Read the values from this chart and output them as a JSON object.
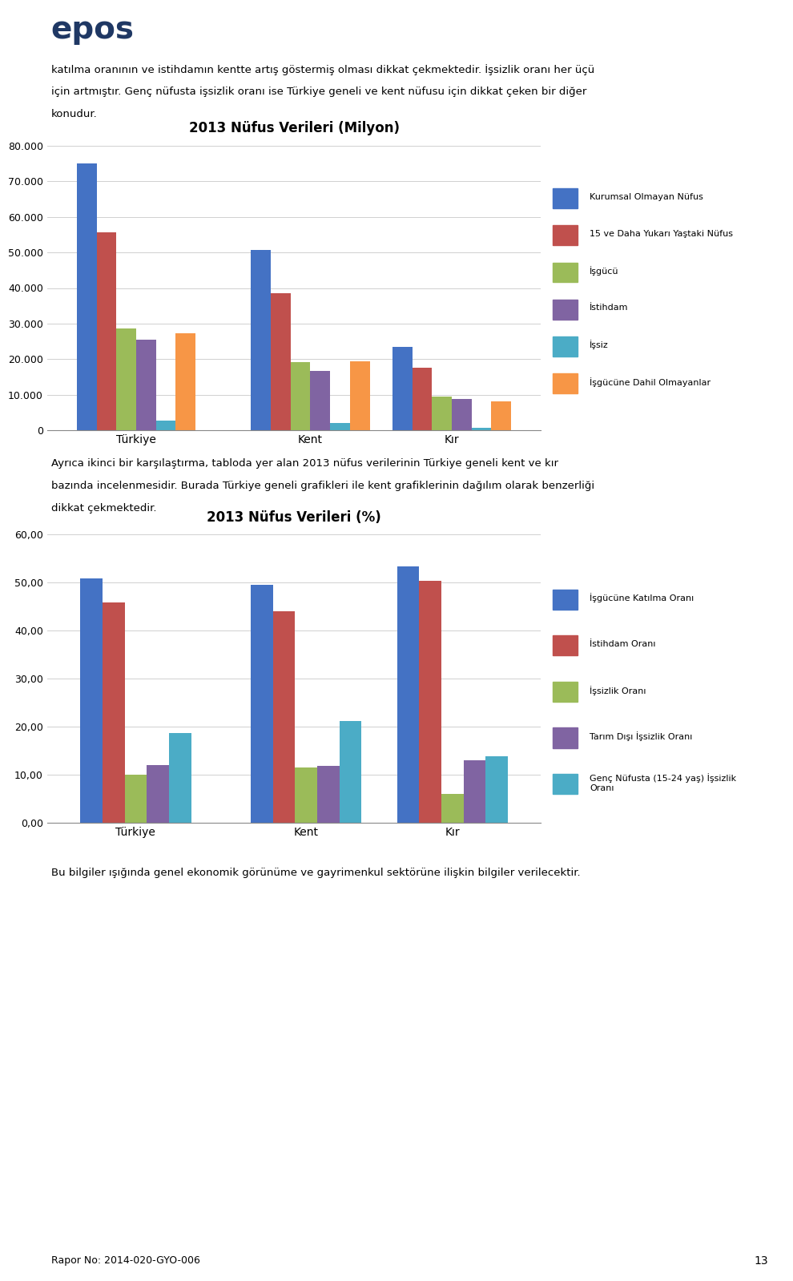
{
  "page_bg": "#ffffff",
  "para1_lines": [
    "katılma oranının ve istihdamın kentte artış göstermiş olması dikkat çekmektedir. İşsizlik oranı her üçü",
    "için artmıştır. Genç nüfusta işsizlik oranı ise Türkiye geneli ve kent nüfusu için dikkat çeken bir diğer",
    "konudur."
  ],
  "chart1_title": "2013 Nüfus Verileri (Milyon)",
  "chart1_categories": [
    "Türkiye",
    "Kent",
    "Kır"
  ],
  "chart1_series_labels": [
    "Kurumsal Olmayan Nüfus",
    "15 ve Daha Yukarı Yaştaki Nüfus",
    "İşgücü",
    "İstihdam",
    "İşsiz",
    "İşgücüne Dahil Olmayanlar"
  ],
  "chart1_data": {
    "Türkiye": [
      75.0,
      55.7,
      28.6,
      25.5,
      2.7,
      27.3
    ],
    "Kent": [
      50.8,
      38.5,
      19.1,
      16.7,
      2.0,
      19.3
    ],
    "Kır": [
      23.5,
      17.5,
      9.5,
      8.8,
      0.6,
      8.1
    ]
  },
  "chart1_colors": [
    "#4472c4",
    "#c0504d",
    "#9bbb59",
    "#8064a2",
    "#4bacc6",
    "#f79646"
  ],
  "chart1_ylim": [
    0,
    80000
  ],
  "chart1_yticks": [
    0,
    10000,
    20000,
    30000,
    40000,
    50000,
    60000,
    70000,
    80000
  ],
  "chart1_ytick_labels": [
    "0",
    "10.000",
    "20.000",
    "30.000",
    "40.000",
    "50.000",
    "60.000",
    "70.000",
    "80.000"
  ],
  "para2_lines": [
    "Ayrıca ikinci bir karşılaştırma, tabloda yer alan 2013 nüfus verilerinin Türkiye geneli kent ve kır",
    "bazında incelenmesidir. Burada Türkiye geneli grafikleri ile kent grafiklerinin dağılım olarak benzerliği",
    "dikkat çekmektedir."
  ],
  "chart2_title": "2013 Nüfus Verileri (%)",
  "chart2_categories": [
    "Türkiye",
    "Kent",
    "Kır"
  ],
  "chart2_series_labels": [
    "İşgücüne Katılma Oranı",
    "İstihdam Oranı",
    "İşsizlik Oranı",
    "Tarım Dışı İşsizlik Oranı",
    "Genç Nüfusta (15-24 yaş) İşsizlik\nOranı"
  ],
  "chart2_data": {
    "Türkiye": [
      50.8,
      45.9,
      10.0,
      12.1,
      18.7
    ],
    "Kent": [
      49.6,
      44.1,
      11.5,
      11.8,
      21.2
    ],
    "Kır": [
      53.4,
      50.3,
      6.1,
      13.0,
      13.8
    ]
  },
  "chart2_colors": [
    "#4472c4",
    "#c0504d",
    "#9bbb59",
    "#8064a2",
    "#4bacc6"
  ],
  "chart2_ylim": [
    0,
    60
  ],
  "chart2_yticks": [
    0,
    10,
    20,
    30,
    40,
    50,
    60
  ],
  "chart2_ytick_labels": [
    "0,00",
    "10,00",
    "20,00",
    "30,00",
    "40,00",
    "50,00",
    "60,00"
  ],
  "footer_text": "Bu bilgiler ışığında genel ekonomik görünüme ve gayrimenkul sektörüne ilişkin bilgiler verilecektir.",
  "rapor_text": "Rapor No: 2014-020-GYO-006",
  "page_num": "13"
}
